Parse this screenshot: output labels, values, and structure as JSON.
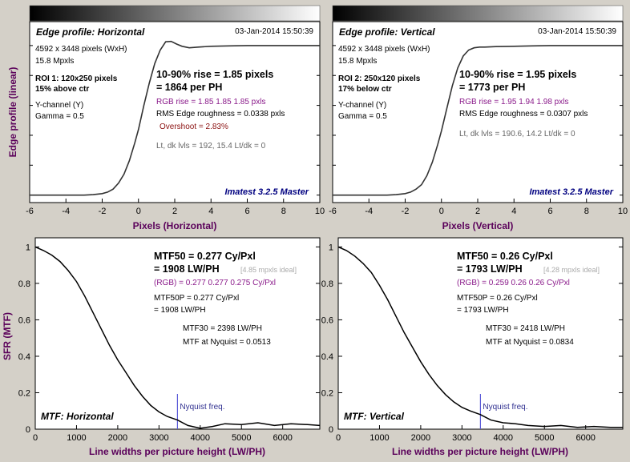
{
  "chart_data": [
    {
      "type": "line",
      "title": "Edge profile: Horizontal",
      "timestamp": "03-Jan-2014 15:50:39",
      "info_lines": [
        "4592 x 3448 pixels (WxH)",
        "15.8 Mpxls",
        "ROI 1:  120x250 pixels",
        "15% above ctr",
        "Y-channel  (Y)",
        "Gamma = 0.5"
      ],
      "rise_line1": "10-90% rise = 1.85 pixels",
      "rise_line2": "= 1864 per PH",
      "rgb_rise": "RGB rise = 1.85  1.85  1.85 pxls",
      "rms": "RMS Edge roughness = 0.0338 pxls",
      "overshoot": "Overshoot = 2.83%",
      "levels": "Lt, dk lvls = 192, 15.4   Lt/dk = 0",
      "watermark": "Imatest 3.2.5 Master",
      "xlabel": "Pixels (Horizontal)",
      "ylabel": "Edge profile (linear)",
      "xlim": [
        -6,
        10
      ],
      "ylim": [
        -0.05,
        1.16
      ],
      "xticks": [
        "-6",
        "-4",
        "-2",
        "0",
        "2",
        "4",
        "6",
        "8",
        "10"
      ],
      "x": [
        -6,
        -3,
        -2.5,
        -2,
        -1.7,
        -1.4,
        -1.1,
        -0.8,
        -0.5,
        -0.2,
        0,
        0.3,
        0.6,
        0.9,
        1.2,
        1.5,
        1.8,
        2.1,
        2.4,
        2.8,
        3.3,
        4,
        5,
        6,
        8,
        10
      ],
      "y": [
        0,
        0,
        0.003,
        0.01,
        0.02,
        0.04,
        0.08,
        0.14,
        0.23,
        0.35,
        0.44,
        0.6,
        0.75,
        0.88,
        0.97,
        1.025,
        1.028,
        1.01,
        0.995,
        0.985,
        0.99,
        0.995,
        0.998,
        1.0,
        1.0,
        1.0
      ]
    },
    {
      "type": "line",
      "title": "Edge profile: Vertical",
      "timestamp": "03-Jan-2014 15:50:39",
      "info_lines": [
        "4592 x 3448 pixels (WxH)",
        "15.8 Mpxls",
        "ROI 2:  250x120 pixels",
        "17% below ctr",
        "Y-channel  (Y)",
        "Gamma = 0.5"
      ],
      "rise_line1": "10-90% rise = 1.95 pixels",
      "rise_line2": "= 1773 per PH",
      "rgb_rise": "RGB rise = 1.95  1.94  1.98 pxls",
      "rms": "RMS Edge roughness = 0.0307 pxls",
      "overshoot": "",
      "levels": "Lt, dk lvls = 190.6, 14.2   Lt/dk = 0",
      "watermark": "Imatest 3.2.5 Master",
      "xlabel": "Pixels (Vertical)",
      "ylabel": "",
      "xlim": [
        -6,
        10
      ],
      "ylim": [
        -0.05,
        1.16
      ],
      "xticks": [
        "-6",
        "-4",
        "-2",
        "0",
        "2",
        "4",
        "6",
        "8",
        "10"
      ],
      "x": [
        -6,
        -3,
        -2.5,
        -2,
        -1.7,
        -1.4,
        -1.1,
        -0.8,
        -0.5,
        -0.2,
        0,
        0.3,
        0.6,
        0.9,
        1.2,
        1.5,
        1.8,
        2.1,
        2.4,
        3,
        4,
        5,
        6,
        8,
        10
      ],
      "y": [
        0,
        0,
        0.003,
        0.01,
        0.02,
        0.04,
        0.07,
        0.13,
        0.22,
        0.34,
        0.43,
        0.58,
        0.73,
        0.85,
        0.93,
        0.97,
        0.985,
        0.99,
        0.99,
        0.993,
        0.995,
        0.998,
        1.0,
        1.0,
        1.0
      ]
    },
    {
      "type": "line",
      "title": "MTF: Horizontal",
      "mtf50_line1": "MTF50 = 0.277 Cy/Pxl",
      "mtf50_line2": "= 1908 LW/PH",
      "ideal": "[4.85 mpxls ideal]",
      "rgb": "(RGB) = 0.277  0.277  0.275 Cy/Pxl",
      "mtf50p_line1": "MTF50P = 0.277 Cy/Pxl",
      "mtf50p_line2": "= 1908 LW/PH",
      "mtf30": "MTF30 = 2398 LW/PH",
      "nyquist_mtf": "MTF at Nyquist = 0.0513",
      "nyquist_label": "Nyquist freq.",
      "nyquist_x": 3448,
      "xlabel": "Line widths per picture height (LW/PH)",
      "ylabel": "SFR (MTF)",
      "xlim": [
        0,
        6900
      ],
      "ylim": [
        0,
        1.05
      ],
      "xticks": [
        "0",
        "1000",
        "2000",
        "3000",
        "4000",
        "5000",
        "6000"
      ],
      "yticks": [
        "0",
        "0.2",
        "0.4",
        "0.6",
        "0.8",
        "1"
      ],
      "x": [
        0,
        200,
        400,
        600,
        800,
        1000,
        1200,
        1400,
        1600,
        1800,
        2000,
        2200,
        2400,
        2600,
        2800,
        3000,
        3200,
        3448,
        3700,
        4000,
        4300,
        4600,
        5000,
        5400,
        5800,
        6200,
        6600,
        6900
      ],
      "y": [
        1.0,
        0.98,
        0.955,
        0.92,
        0.87,
        0.81,
        0.73,
        0.64,
        0.55,
        0.46,
        0.38,
        0.31,
        0.24,
        0.18,
        0.13,
        0.095,
        0.07,
        0.05,
        0.02,
        0.005,
        0.015,
        0.03,
        0.025,
        0.035,
        0.02,
        0.03,
        0.025,
        0.02
      ]
    },
    {
      "type": "line",
      "title": "MTF: Vertical",
      "mtf50_line1": "MTF50 = 0.26 Cy/Pxl",
      "mtf50_line2": "= 1793 LW/PH",
      "ideal": "[4.28 mpxls ideal]",
      "rgb": "(RGB) = 0.259  0.26  0.26 Cy/Pxl",
      "mtf50p_line1": "MTF50P = 0.26 Cy/Pxl",
      "mtf50p_line2": "= 1793 LW/PH",
      "mtf30": "MTF30 = 2418 LW/PH",
      "nyquist_mtf": "MTF at Nyquist = 0.0834",
      "nyquist_label": "Nyquist freq.",
      "nyquist_x": 3448,
      "xlabel": "Line widths per picture height (LW/PH)",
      "ylabel": "",
      "xlim": [
        0,
        6900
      ],
      "ylim": [
        0,
        1.05
      ],
      "xticks": [
        "0",
        "1000",
        "2000",
        "3000",
        "4000",
        "5000",
        "6000"
      ],
      "yticks": [
        "0",
        "0.2",
        "0.4",
        "0.6",
        "0.8",
        "1"
      ],
      "x": [
        0,
        200,
        400,
        600,
        800,
        1000,
        1200,
        1400,
        1600,
        1800,
        2000,
        2200,
        2400,
        2600,
        2800,
        3000,
        3200,
        3448,
        3700,
        4000,
        4300,
        4600,
        5000,
        5400,
        5800,
        6200,
        6600,
        6900
      ],
      "y": [
        1.0,
        0.98,
        0.95,
        0.91,
        0.86,
        0.79,
        0.71,
        0.62,
        0.53,
        0.45,
        0.37,
        0.3,
        0.24,
        0.19,
        0.15,
        0.12,
        0.1,
        0.08,
        0.05,
        0.035,
        0.03,
        0.02,
        0.015,
        0.02,
        0.01,
        0.015,
        0.01,
        0.01
      ]
    }
  ]
}
